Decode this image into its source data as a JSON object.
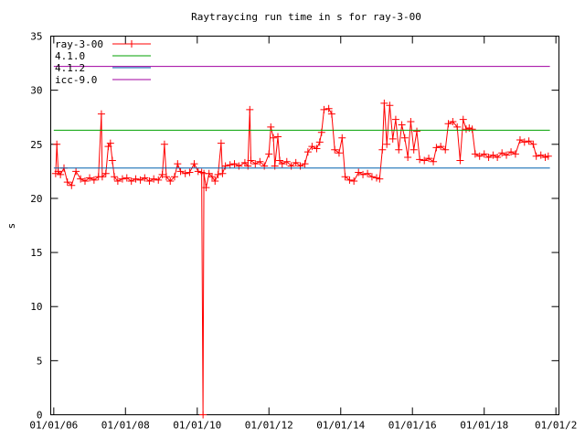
{
  "chart_data": {
    "type": "line",
    "title": "Raytraycing run time in s for ray-3-00",
    "xlabel": "",
    "ylabel": "s",
    "x_axis": {
      "type": "date",
      "min": "2005-12-01",
      "max": "2020-02-01",
      "ticks": [
        {
          "date": "2006-01-01",
          "label": "01/01/06"
        },
        {
          "date": "2008-01-01",
          "label": "01/01/08"
        },
        {
          "date": "2010-01-01",
          "label": "01/01/10"
        },
        {
          "date": "2012-01-01",
          "label": "01/01/12"
        },
        {
          "date": "2014-01-01",
          "label": "01/01/14"
        },
        {
          "date": "2016-01-01",
          "label": "01/01/16"
        },
        {
          "date": "2018-01-01",
          "label": "01/01/18"
        },
        {
          "date": "2020-01-01",
          "label": "01/01/2"
        }
      ]
    },
    "y_axis": {
      "min": 0,
      "max": 35,
      "ticks": [
        0,
        5,
        10,
        15,
        20,
        25,
        30,
        35
      ]
    },
    "grid": false,
    "legend_position": "top-left",
    "series": [
      {
        "name": "ray-3-00",
        "color": "#ff0000",
        "marker": "plus",
        "points": [
          [
            "2006-01-20",
            22.3
          ],
          [
            "2006-02-01",
            25.0
          ],
          [
            "2006-02-15",
            22.5
          ],
          [
            "2006-03-10",
            22.2
          ],
          [
            "2006-04-15",
            22.8
          ],
          [
            "2006-05-20",
            21.5
          ],
          [
            "2006-07-01",
            21.2
          ],
          [
            "2006-08-15",
            22.5
          ],
          [
            "2006-10-01",
            21.8
          ],
          [
            "2006-11-15",
            21.6
          ],
          [
            "2007-01-01",
            21.9
          ],
          [
            "2007-02-15",
            21.7
          ],
          [
            "2007-04-01",
            22.0
          ],
          [
            "2007-05-01",
            27.8
          ],
          [
            "2007-05-10",
            22.0
          ],
          [
            "2007-06-15",
            22.3
          ],
          [
            "2007-07-10",
            24.8
          ],
          [
            "2007-08-01",
            25.1
          ],
          [
            "2007-08-20",
            23.5
          ],
          [
            "2007-09-10",
            22.0
          ],
          [
            "2007-10-15",
            21.6
          ],
          [
            "2007-12-01",
            21.8
          ],
          [
            "2008-01-15",
            21.9
          ],
          [
            "2008-03-01",
            21.6
          ],
          [
            "2008-04-15",
            21.8
          ],
          [
            "2008-06-01",
            21.7
          ],
          [
            "2008-07-15",
            21.9
          ],
          [
            "2008-09-01",
            21.6
          ],
          [
            "2008-10-15",
            21.8
          ],
          [
            "2008-12-01",
            21.7
          ],
          [
            "2009-01-10",
            22.2
          ],
          [
            "2009-02-01",
            25.0
          ],
          [
            "2009-02-20",
            22.0
          ],
          [
            "2009-04-01",
            21.6
          ],
          [
            "2009-05-15",
            22.0
          ],
          [
            "2009-06-15",
            23.2
          ],
          [
            "2009-07-15",
            22.5
          ],
          [
            "2009-09-01",
            22.3
          ],
          [
            "2009-10-15",
            22.4
          ],
          [
            "2009-12-01",
            23.2
          ],
          [
            "2010-01-10",
            22.5
          ],
          [
            "2010-02-15",
            22.4
          ],
          [
            "2010-03-01",
            0.0
          ],
          [
            "2010-03-10",
            22.3
          ],
          [
            "2010-04-01",
            21.0
          ],
          [
            "2010-05-01",
            22.3
          ],
          [
            "2010-06-01",
            22.0
          ],
          [
            "2010-07-01",
            21.6
          ],
          [
            "2010-08-01",
            22.2
          ],
          [
            "2010-09-01",
            25.1
          ],
          [
            "2010-09-15",
            22.3
          ],
          [
            "2010-10-15",
            23.0
          ],
          [
            "2010-12-01",
            23.1
          ],
          [
            "2011-01-15",
            23.2
          ],
          [
            "2011-03-01",
            23.0
          ],
          [
            "2011-05-01",
            23.3
          ],
          [
            "2011-06-01",
            23.0
          ],
          [
            "2011-06-20",
            28.2
          ],
          [
            "2011-07-01",
            23.5
          ],
          [
            "2011-08-15",
            23.2
          ],
          [
            "2011-10-01",
            23.4
          ],
          [
            "2011-11-15",
            23.0
          ],
          [
            "2012-01-01",
            24.1
          ],
          [
            "2012-01-20",
            26.6
          ],
          [
            "2012-02-15",
            25.6
          ],
          [
            "2012-03-01",
            23.0
          ],
          [
            "2012-04-01",
            25.7
          ],
          [
            "2012-04-20",
            23.5
          ],
          [
            "2012-05-15",
            23.2
          ],
          [
            "2012-07-01",
            23.4
          ],
          [
            "2012-08-15",
            23.0
          ],
          [
            "2012-10-01",
            23.3
          ],
          [
            "2012-11-15",
            23.0
          ],
          [
            "2013-01-01",
            23.2
          ],
          [
            "2013-02-01",
            24.3
          ],
          [
            "2013-03-15",
            24.8
          ],
          [
            "2013-05-01",
            24.6
          ],
          [
            "2013-06-01",
            25.2
          ],
          [
            "2013-06-20",
            26.1
          ],
          [
            "2013-07-15",
            28.2
          ],
          [
            "2013-09-01",
            28.3
          ],
          [
            "2013-10-01",
            27.8
          ],
          [
            "2013-11-01",
            24.5
          ],
          [
            "2013-12-15",
            24.2
          ],
          [
            "2014-01-15",
            25.6
          ],
          [
            "2014-02-15",
            22.0
          ],
          [
            "2014-04-01",
            21.7
          ],
          [
            "2014-05-15",
            21.6
          ],
          [
            "2014-07-01",
            22.4
          ],
          [
            "2014-08-15",
            22.2
          ],
          [
            "2014-10-01",
            22.3
          ],
          [
            "2014-11-15",
            22.0
          ],
          [
            "2015-01-01",
            21.9
          ],
          [
            "2015-02-01",
            21.8
          ],
          [
            "2015-03-01",
            24.5
          ],
          [
            "2015-03-20",
            28.8
          ],
          [
            "2015-04-15",
            25.0
          ],
          [
            "2015-05-15",
            28.6
          ],
          [
            "2015-06-15",
            25.5
          ],
          [
            "2015-07-15",
            27.3
          ],
          [
            "2015-08-15",
            24.5
          ],
          [
            "2015-09-15",
            26.8
          ],
          [
            "2015-10-15",
            25.6
          ],
          [
            "2015-11-15",
            23.8
          ],
          [
            "2015-12-15",
            27.1
          ],
          [
            "2016-01-15",
            24.5
          ],
          [
            "2016-02-15",
            26.2
          ],
          [
            "2016-03-15",
            23.6
          ],
          [
            "2016-05-01",
            23.5
          ],
          [
            "2016-06-15",
            23.7
          ],
          [
            "2016-08-01",
            23.4
          ],
          [
            "2016-09-01",
            24.7
          ],
          [
            "2016-10-15",
            24.8
          ],
          [
            "2016-12-01",
            24.5
          ],
          [
            "2017-01-01",
            26.9
          ],
          [
            "2017-02-15",
            27.1
          ],
          [
            "2017-04-01",
            26.6
          ],
          [
            "2017-05-01",
            23.5
          ],
          [
            "2017-06-01",
            27.3
          ],
          [
            "2017-07-01",
            26.4
          ],
          [
            "2017-08-01",
            26.5
          ],
          [
            "2017-09-01",
            26.4
          ],
          [
            "2017-10-01",
            24.1
          ],
          [
            "2017-11-15",
            23.9
          ],
          [
            "2018-01-01",
            24.1
          ],
          [
            "2018-02-15",
            23.8
          ],
          [
            "2018-04-01",
            24.0
          ],
          [
            "2018-05-15",
            23.8
          ],
          [
            "2018-07-01",
            24.2
          ],
          [
            "2018-08-15",
            24.0
          ],
          [
            "2018-10-01",
            24.3
          ],
          [
            "2018-11-15",
            24.1
          ],
          [
            "2019-01-01",
            25.4
          ],
          [
            "2019-02-15",
            25.2
          ],
          [
            "2019-04-01",
            25.3
          ],
          [
            "2019-05-15",
            25.0
          ],
          [
            "2019-06-15",
            23.9
          ],
          [
            "2019-08-01",
            24.0
          ],
          [
            "2019-09-15",
            23.8
          ],
          [
            "2019-10-15",
            23.9
          ]
        ]
      },
      {
        "name": "4.1.0",
        "color": "#00a000",
        "constant": 26.3,
        "from": "2006-01-01",
        "to": "2019-11-01"
      },
      {
        "name": "4.1.2",
        "color": "#0060ad",
        "constant": 22.8,
        "from": "2006-01-01",
        "to": "2019-11-01"
      },
      {
        "name": "icc-9.0",
        "color": "#a000a0",
        "constant": 32.2,
        "from": "2006-01-01",
        "to": "2019-11-01"
      }
    ]
  }
}
